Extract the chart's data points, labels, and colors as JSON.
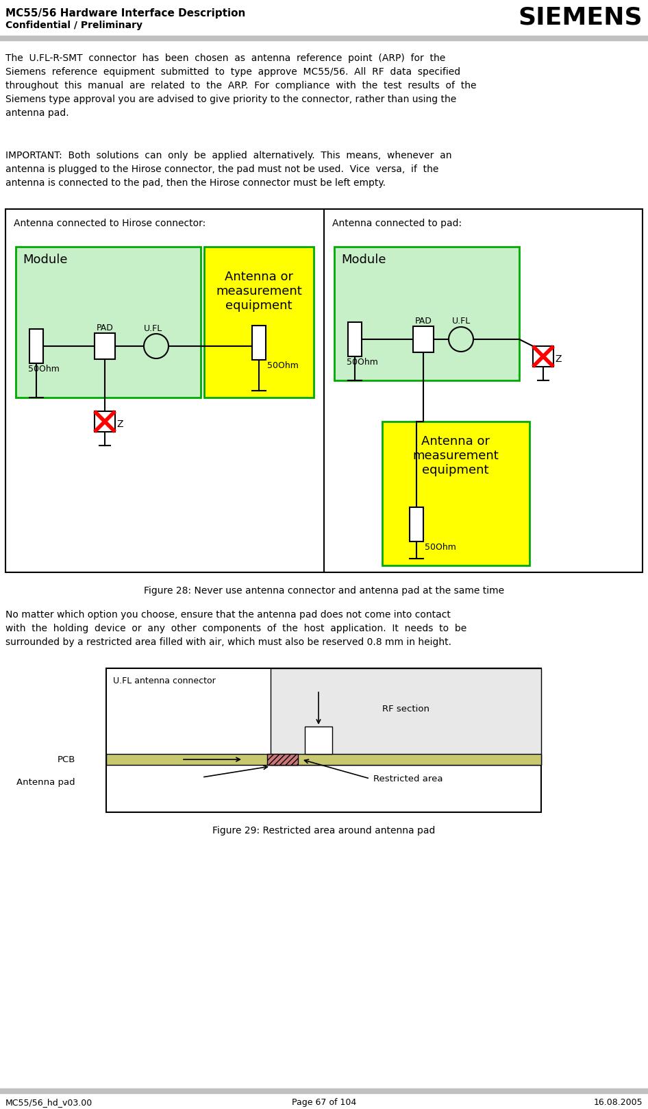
{
  "header_title": "MC55/56 Hardware Interface Description",
  "header_subtitle": "Confidential / Preliminary",
  "siemens_logo": "SIEMENS",
  "footer_left": "MC55/56_hd_v03.00",
  "footer_center": "Page 67 of 104",
  "footer_right": "16.08.2005",
  "fig28_caption": "Figure 28: Never use antenna connector and antenna pad at the same time",
  "fig29_caption": "Figure 29: Restricted area around antenna pad",
  "label_left_box": "Antenna connected to Hirose connector:",
  "label_right_box": "Antenna connected to pad:",
  "module_color": "#c8f0c8",
  "module_edge": "#00aa00",
  "antenna_yellow": "#ffff00",
  "antenna_yellow_edge": "#00aa00",
  "paragraph3": "No matter which option you choose, ensure that the antenna pad does not come into contact with the holding device or any other components of the host application. It needs to be surrounded by a restricted area filled with air, which must also be reserved 0.8 mm in height."
}
